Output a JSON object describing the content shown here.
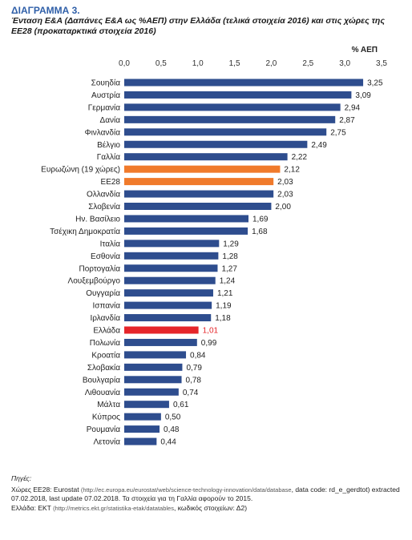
{
  "header": {
    "chart_number": "ΔΙΑΓΡΑΜΜΑ 3.",
    "title": "Ένταση Ε&Α (Δαπάνες Ε&Α ως %ΑΕΠ) στην Ελλάδα (τελικά στοιχεία 2016) και στις χώρες της ΕΕ28 (προκαταρκτικά στοιχεία 2016)"
  },
  "chart_data": {
    "type": "bar",
    "orientation": "horizontal",
    "title": "Ένταση Ε&Α (Δαπάνες Ε&Α ως %ΑΕΠ) στην Ελλάδα (τελικά στοιχεία 2016) και στις χώρες της ΕΕ28 (προκαταρκτικά στοιχεία 2016)",
    "unit_label": "% ΑΕΠ",
    "xlim": [
      0,
      3.5
    ],
    "ticks": [
      0,
      0.5,
      1,
      1.5,
      2,
      2.5,
      3,
      3.5
    ],
    "tick_labels": [
      "0,0",
      "0,5",
      "1,0",
      "1,5",
      "2,0",
      "2,5",
      "3,0",
      "3,5"
    ],
    "axis_position": "top",
    "grid": false,
    "legend": "none",
    "categories": [
      "Σουηδία",
      "Αυστρία",
      "Γερμανία",
      "Δανία",
      "Φινλανδία",
      "Βέλγιο",
      "Γαλλία",
      "Ευρωζώνη (19 χώρες)",
      "ΕΕ28",
      "Ολλανδία",
      "Σλοβενία",
      "Ην. Βασίλειο",
      "Τσέχικη Δημοκρατία",
      "Ιταλία",
      "Εσθονία",
      "Πορτογαλία",
      "Λουξεμβούργο",
      "Ουγγαρία",
      "Ισπανία",
      "Ιρλανδία",
      "Ελλάδα",
      "Πολωνία",
      "Κροατία",
      "Σλοβακία",
      "Βουλγαρία",
      "Λιθουανία",
      "Μάλτα",
      "Κύπρος",
      "Ρουμανία",
      "Λετονία"
    ],
    "values": [
      3.25,
      3.09,
      2.94,
      2.87,
      2.75,
      2.49,
      2.22,
      2.12,
      2.03,
      2.03,
      2.0,
      1.69,
      1.68,
      1.29,
      1.28,
      1.27,
      1.24,
      1.21,
      1.19,
      1.18,
      1.01,
      0.99,
      0.84,
      0.79,
      0.78,
      0.74,
      0.61,
      0.5,
      0.48,
      0.44
    ],
    "value_labels": [
      "3,25",
      "3,09",
      "2,94",
      "2,87",
      "2,75",
      "2,49",
      "2,22",
      "2,12",
      "2,03",
      "2,03",
      "2,00",
      "1,69",
      "1,68",
      "1,29",
      "1,28",
      "1,27",
      "1,24",
      "1,21",
      "1,19",
      "1,18",
      "1,01",
      "0,99",
      "0,84",
      "0,79",
      "0,78",
      "0,74",
      "0,61",
      "0,50",
      "0,48",
      "0,44"
    ],
    "bar_colors": {
      "default": "#2e4d8e",
      "highlight_aggregate": "#f07a2b",
      "highlight_country": "#e5252a"
    },
    "aggregate_categories": [
      "Ευρωζώνη (19 χώρες)",
      "ΕΕ28"
    ],
    "highlight_category": "Ελλάδα"
  },
  "sources": {
    "heading": "Πηγές:",
    "line1_prefix": "Χώρες ΕΕ28: Eurostat ",
    "line1_url": "(http://ec.europa.eu/eurostat/web/science-technology-innovation/data/database",
    "line1_suffix": ", data code: rd_e_gerdtot) extracted 07.02.2018, last update 07.02.2018. Τα στοιχεία για τη Γαλλία αφορούν το 2015.",
    "line2_prefix": "Ελλάδα: ΕΚΤ ",
    "line2_url": "(http://metrics.ekt.gr/statistika-etak/datatables",
    "line2_suffix": ", κωδικός στοιχείων: Δ2)"
  }
}
